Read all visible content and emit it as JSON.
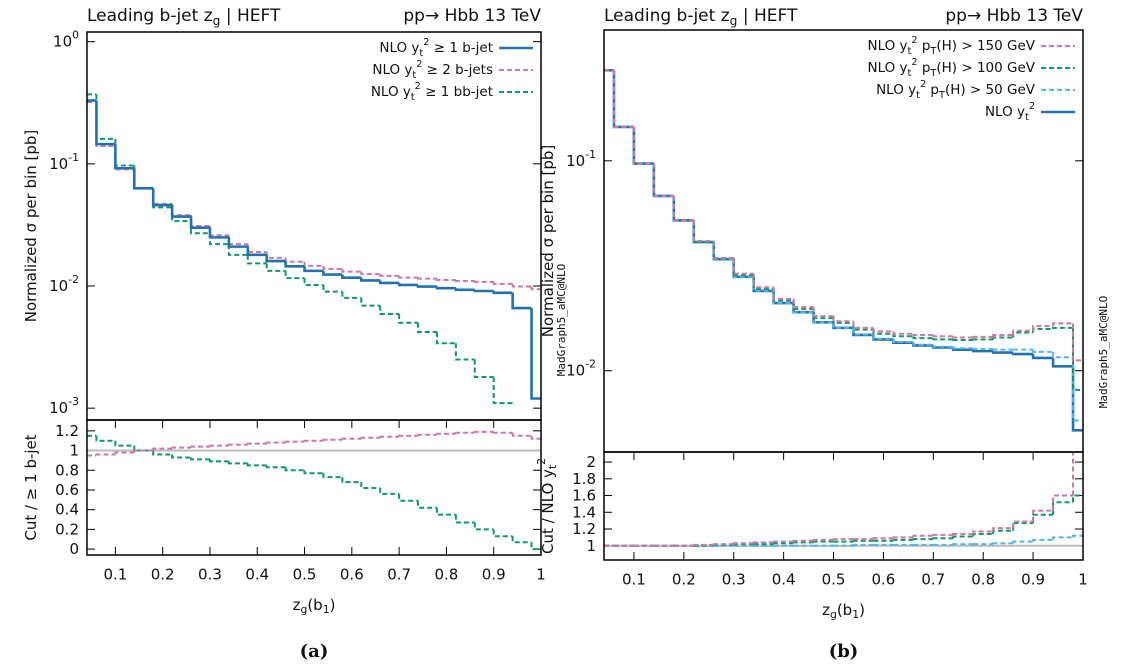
{
  "chart_data": [
    {
      "type": "histogram",
      "ylog": true,
      "title": [
        "Leading b-jet z",
        {
          "text": "g",
          "shift": "sub"
        },
        " | HEFT"
      ],
      "subtitle": "pp→ Hbb 13 TeV",
      "annotation": "MadGraph5_aMC@NLO",
      "caption": "(a)",
      "ylabel": "Normalized σ per bin [pb]",
      "legend": "top-right",
      "xlim": [
        0.04,
        1
      ],
      "ylim": [
        0.0008,
        1.2
      ],
      "yticks": [
        {
          "value": 1,
          "label": [
            "10",
            {
              "text": "0",
              "shift": "sup"
            }
          ]
        },
        {
          "value": 0.1,
          "label": [
            "10",
            {
              "text": "-1",
              "shift": "sup"
            }
          ]
        },
        {
          "value": 0.01,
          "label": [
            "10",
            {
              "text": "-2",
              "shift": "sup"
            }
          ]
        },
        {
          "value": 0.001,
          "label": [
            "10",
            {
              "text": "-3",
              "shift": "sup"
            }
          ]
        }
      ],
      "bins": [
        0.04,
        0.06,
        0.1,
        0.14,
        0.18,
        0.22,
        0.26,
        0.3,
        0.34,
        0.38,
        0.42,
        0.46,
        0.5,
        0.54,
        0.58,
        0.62,
        0.66,
        0.7,
        0.74,
        0.78,
        0.82,
        0.86,
        0.9,
        0.94,
        0.98,
        1.0
      ],
      "series": [
        {
          "name": [
            "NLO y",
            {
              "text": "t",
              "shift": "sub"
            },
            {
              "text": "2",
              "shift": "sup"
            },
            " ≥ 1 b-jet"
          ],
          "color": "#2272b0",
          "dashed": false,
          "values": [
            0.33,
            0.145,
            0.092,
            0.063,
            0.046,
            0.037,
            0.03,
            0.025,
            0.021,
            0.018,
            0.016,
            0.0145,
            0.0133,
            0.0124,
            0.0117,
            0.0111,
            0.0106,
            0.0102,
            0.0099,
            0.0096,
            0.0093,
            0.0091,
            0.0088,
            0.0066,
            0.0012
          ]
        },
        {
          "name": [
            "NLO y",
            {
              "text": "t",
              "shift": "sub"
            },
            {
              "text": "2",
              "shift": "sup"
            },
            " ≥ 2 b-jets"
          ],
          "color": "#cc79a7",
          "dashed": true,
          "values": [
            0.32,
            0.14,
            0.09,
            0.063,
            0.047,
            0.038,
            0.031,
            0.026,
            0.022,
            0.019,
            0.017,
            0.0158,
            0.0146,
            0.0138,
            0.0131,
            0.0125,
            0.0121,
            0.0117,
            0.0115,
            0.0112,
            0.011,
            0.0108,
            0.0104,
            0.0099,
            0.0094
          ]
        },
        {
          "name": [
            "NLO y",
            {
              "text": "t",
              "shift": "sub"
            },
            {
              "text": "2",
              "shift": "sup"
            },
            " ≥ 1 bb-jet"
          ],
          "color": "#119966",
          "dashed": true,
          "values": [
            0.37,
            0.16,
            0.097,
            0.063,
            0.044,
            0.034,
            0.027,
            0.022,
            0.018,
            0.0153,
            0.0133,
            0.0116,
            0.0102,
            0.009,
            0.008,
            0.0069,
            0.0059,
            0.005,
            0.0042,
            0.0034,
            0.0025,
            0.0018,
            0.0011,
            null,
            null
          ]
        }
      ]
    },
    {
      "type": "histogram",
      "ylog": false,
      "ylabel": "Cut / ≥ 1 b-jet",
      "xlabel": [
        "z",
        {
          "text": "g",
          "shift": "sub"
        },
        "(b",
        {
          "text": "1",
          "shift": "sub"
        },
        ")"
      ],
      "xlim": [
        0.04,
        1
      ],
      "ylim": [
        -0.06,
        1.31
      ],
      "xticks": [
        0.1,
        0.2,
        0.3,
        0.4,
        0.5,
        0.6,
        0.7,
        0.8,
        0.9,
        1
      ],
      "yticks": [
        0,
        0.2,
        0.4,
        0.6,
        0.8,
        1,
        1.2
      ],
      "refline": {
        "value": 1,
        "color": "#bbbbbb"
      },
      "bins": [
        0.04,
        0.06,
        0.1,
        0.14,
        0.18,
        0.22,
        0.26,
        0.3,
        0.34,
        0.38,
        0.42,
        0.46,
        0.5,
        0.54,
        0.58,
        0.62,
        0.66,
        0.7,
        0.74,
        0.78,
        0.82,
        0.86,
        0.9,
        0.94,
        0.98,
        1.0
      ],
      "series": [
        {
          "color": "#cc79a7",
          "dashed": true,
          "values": [
            0.95,
            0.96,
            0.98,
            1.0,
            1.02,
            1.03,
            1.04,
            1.05,
            1.06,
            1.07,
            1.08,
            1.09,
            1.1,
            1.11,
            1.12,
            1.13,
            1.14,
            1.15,
            1.16,
            1.17,
            1.18,
            1.19,
            1.18,
            1.15,
            1.12
          ]
        },
        {
          "color": "#119966",
          "dashed": true,
          "values": [
            1.15,
            1.1,
            1.05,
            1.0,
            0.96,
            0.93,
            0.91,
            0.89,
            0.87,
            0.85,
            0.83,
            0.8,
            0.77,
            0.73,
            0.68,
            0.62,
            0.56,
            0.49,
            0.42,
            0.35,
            0.27,
            0.2,
            0.13,
            0.07,
            0.0
          ]
        }
      ]
    },
    {
      "type": "histogram",
      "ylog": true,
      "title": [
        "Leading b-jet z",
        {
          "text": "g",
          "shift": "sub"
        },
        " | HEFT"
      ],
      "subtitle": "pp→ Hbb 13 TeV",
      "annotation": "MadGraph5_aMC@NLO",
      "caption": "(b)",
      "ylabel": "Normalized σ per bin [pb]",
      "legend": "top-right",
      "xlim": [
        0.04,
        1
      ],
      "ylim": [
        0.0041,
        0.42
      ],
      "yticks": [
        {
          "value": 0.1,
          "label": [
            "10",
            {
              "text": "-1",
              "shift": "sup"
            }
          ]
        },
        {
          "value": 0.01,
          "label": [
            "10",
            {
              "text": "-2",
              "shift": "sup"
            }
          ]
        }
      ],
      "bins": [
        0.04,
        0.06,
        0.1,
        0.14,
        0.18,
        0.22,
        0.26,
        0.3,
        0.34,
        0.38,
        0.42,
        0.46,
        0.5,
        0.54,
        0.58,
        0.62,
        0.66,
        0.7,
        0.74,
        0.78,
        0.82,
        0.86,
        0.9,
        0.94,
        0.98,
        1.0
      ],
      "series": [
        {
          "name": [
            "NLO y",
            {
              "text": "t",
              "shift": "sub"
            },
            {
              "text": "2",
              "shift": "sup"
            },
            " p",
            {
              "text": "T",
              "shift": "sub"
            },
            "(H) > 150 GeV"
          ],
          "color": "#cc79a7",
          "dashed": true,
          "values": [
            0.27,
            0.145,
            0.097,
            0.068,
            0.052,
            0.0415,
            0.0345,
            0.029,
            0.025,
            0.022,
            0.0201,
            0.0182,
            0.0172,
            0.016,
            0.0154,
            0.015,
            0.0148,
            0.0146,
            0.0144,
            0.0145,
            0.0148,
            0.0155,
            0.0163,
            0.0168,
            0.0112
          ]
        },
        {
          "name": [
            "NLO y",
            {
              "text": "t",
              "shift": "sub"
            },
            {
              "text": "2",
              "shift": "sup"
            },
            " p",
            {
              "text": "T",
              "shift": "sub"
            },
            "(H) > 100 GeV"
          ],
          "color": "#119966",
          "dashed": true,
          "values": [
            0.27,
            0.145,
            0.097,
            0.068,
            0.052,
            0.041,
            0.0343,
            0.0285,
            0.0245,
            0.0216,
            0.0197,
            0.0178,
            0.0169,
            0.0157,
            0.015,
            0.0146,
            0.0143,
            0.0141,
            0.014,
            0.0141,
            0.0144,
            0.0152,
            0.0158,
            0.016,
            0.0081
          ]
        },
        {
          "name": [
            "NLO y",
            {
              "text": "t",
              "shift": "sub"
            },
            {
              "text": "2",
              "shift": "sup"
            },
            " p",
            {
              "text": "T",
              "shift": "sub"
            },
            "(H) > 50 GeV"
          ],
          "color": "#56b4e9",
          "dashed": true,
          "values": [
            0.27,
            0.145,
            0.097,
            0.068,
            0.052,
            0.041,
            0.034,
            0.028,
            0.024,
            0.021,
            0.019,
            0.017,
            0.016,
            0.0149,
            0.0142,
            0.0137,
            0.0133,
            0.013,
            0.0128,
            0.0127,
            0.0126,
            0.0126,
            0.0123,
            0.0116,
            0.0058
          ]
        },
        {
          "name": [
            "NLO y",
            {
              "text": "t",
              "shift": "sub"
            },
            {
              "text": "2",
              "shift": "sup"
            }
          ],
          "color": "#2272b0",
          "dashed": false,
          "values": [
            0.27,
            0.145,
            0.097,
            0.068,
            0.052,
            0.041,
            0.034,
            0.028,
            0.024,
            0.021,
            0.019,
            0.017,
            0.016,
            0.0148,
            0.0141,
            0.0136,
            0.0132,
            0.0129,
            0.0126,
            0.0124,
            0.0122,
            0.012,
            0.0115,
            0.0105,
            0.0052
          ]
        }
      ]
    },
    {
      "type": "histogram",
      "ylog": false,
      "ylabel": [
        "Cut / NLO y",
        {
          "text": "t",
          "shift": "sub"
        },
        {
          "text": "2",
          "shift": "sup"
        }
      ],
      "xlabel": [
        "z",
        {
          "text": "g",
          "shift": "sub"
        },
        "(b",
        {
          "text": "1",
          "shift": "sub"
        },
        ")"
      ],
      "xlim": [
        0.04,
        1
      ],
      "ylim": [
        0.83,
        2.12
      ],
      "xticks": [
        0.1,
        0.2,
        0.3,
        0.4,
        0.5,
        0.6,
        0.7,
        0.8,
        0.9,
        1
      ],
      "yticks": [
        1,
        1.2,
        1.4,
        1.6,
        1.8,
        2
      ],
      "refline": {
        "value": 1,
        "color": "#bbbbbb"
      },
      "bins": [
        0.04,
        0.06,
        0.1,
        0.14,
        0.18,
        0.22,
        0.26,
        0.3,
        0.34,
        0.38,
        0.42,
        0.46,
        0.5,
        0.54,
        0.58,
        0.62,
        0.66,
        0.7,
        0.74,
        0.78,
        0.82,
        0.86,
        0.9,
        0.94,
        0.98,
        1.0
      ],
      "series": [
        {
          "color": "#cc79a7",
          "dashed": true,
          "values": [
            1.0,
            1.0,
            1.0,
            1.0,
            1.0,
            1.01,
            1.02,
            1.03,
            1.04,
            1.05,
            1.06,
            1.07,
            1.08,
            1.08,
            1.09,
            1.1,
            1.12,
            1.13,
            1.14,
            1.17,
            1.21,
            1.29,
            1.42,
            1.6,
            2.2
          ]
        },
        {
          "color": "#119966",
          "dashed": true,
          "values": [
            1.0,
            1.0,
            1.0,
            1.0,
            1.0,
            1.0,
            1.01,
            1.02,
            1.02,
            1.03,
            1.04,
            1.05,
            1.05,
            1.06,
            1.06,
            1.07,
            1.08,
            1.09,
            1.11,
            1.14,
            1.18,
            1.27,
            1.37,
            1.52,
            1.6
          ]
        },
        {
          "color": "#56b4e9",
          "dashed": true,
          "values": [
            1.0,
            1.0,
            1.0,
            1.0,
            1.0,
            1.0,
            1.0,
            1.0,
            1.0,
            1.0,
            1.0,
            1.0,
            1.0,
            1.01,
            1.01,
            1.01,
            1.01,
            1.01,
            1.02,
            1.02,
            1.03,
            1.05,
            1.07,
            1.1,
            1.12
          ]
        }
      ]
    }
  ]
}
